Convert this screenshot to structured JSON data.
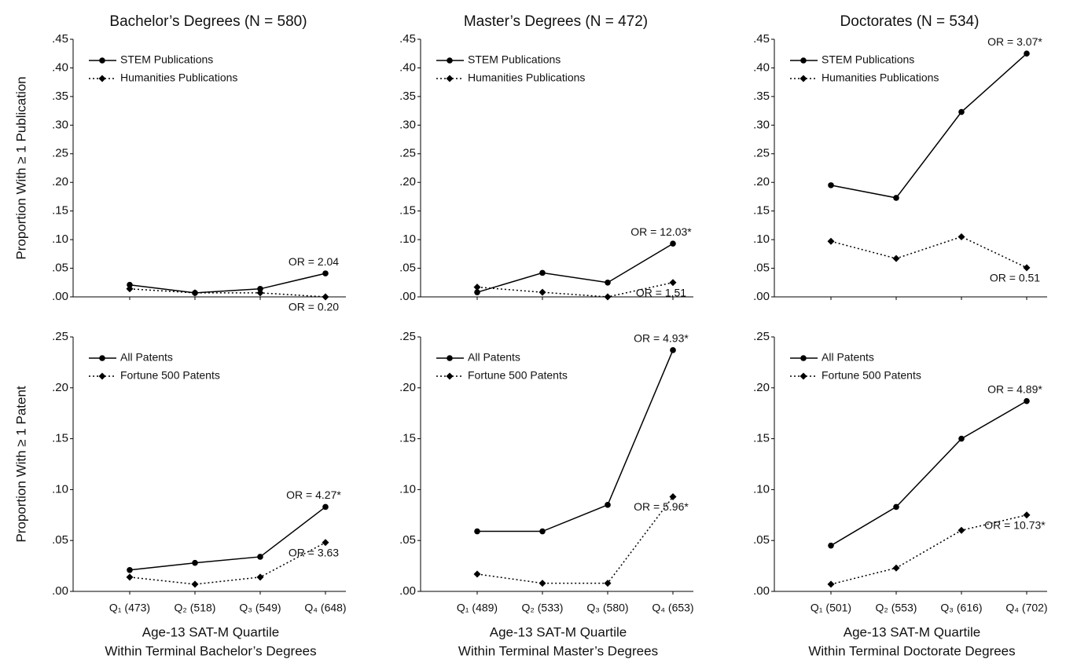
{
  "chart_data": [
    {
      "type": "line",
      "title": "Bachelor’s Degrees (N = 580)",
      "ylabel": "Proportion With ≥ 1 Publication",
      "categories": [
        null,
        null,
        null,
        null
      ],
      "ylim": [
        0,
        0.45
      ],
      "yticks": [
        {
          "value": 0,
          "label": ".00"
        },
        {
          "value": 0.05,
          "label": ".05"
        },
        {
          "value": 0.1,
          "label": ".10"
        },
        {
          "value": 0.15,
          "label": ".15"
        },
        {
          "value": 0.2,
          "label": ".20"
        },
        {
          "value": 0.25,
          "label": ".25"
        },
        {
          "value": 0.3,
          "label": ".30"
        },
        {
          "value": 0.35,
          "label": ".35"
        },
        {
          "value": 0.4,
          "label": ".40"
        },
        {
          "value": 0.45,
          "label": ".45"
        }
      ],
      "series": [
        {
          "name": "STEM Publications",
          "color": "#000000",
          "style": "solid",
          "marker": "circle",
          "values": [
            0.021,
            0.007,
            0.014,
            0.041
          ],
          "annotation": "OR = 2.04"
        },
        {
          "name": "Humanities Publications",
          "color": "#000000",
          "style": "dotted",
          "marker": "diamond",
          "values": [
            0.014,
            0.007,
            0.007,
            0.0
          ],
          "annotation": "OR = 0.20"
        }
      ]
    },
    {
      "type": "line",
      "title": "Master’s Degrees (N = 472)",
      "categories": [
        null,
        null,
        null,
        null
      ],
      "ylim": [
        0,
        0.45
      ],
      "yticks": [
        {
          "value": 0,
          "label": ".00"
        },
        {
          "value": 0.05,
          "label": ".05"
        },
        {
          "value": 0.1,
          "label": ".10"
        },
        {
          "value": 0.15,
          "label": ".15"
        },
        {
          "value": 0.2,
          "label": ".20"
        },
        {
          "value": 0.25,
          "label": ".25"
        },
        {
          "value": 0.3,
          "label": ".30"
        },
        {
          "value": 0.35,
          "label": ".35"
        },
        {
          "value": 0.4,
          "label": ".40"
        },
        {
          "value": 0.45,
          "label": ".45"
        }
      ],
      "series": [
        {
          "name": "STEM Publications",
          "color": "#000000",
          "style": "solid",
          "marker": "circle",
          "values": [
            0.008,
            0.042,
            0.025,
            0.093
          ],
          "annotation": "OR = 12.03*"
        },
        {
          "name": "Humanities Publications",
          "color": "#000000",
          "style": "dotted",
          "marker": "diamond",
          "values": [
            0.017,
            0.008,
            0.0,
            0.025
          ],
          "annotation": "OR = 1.51"
        }
      ]
    },
    {
      "type": "line",
      "title": "Doctorates (N = 534)",
      "categories": [
        null,
        null,
        null,
        null
      ],
      "ylim": [
        0,
        0.45
      ],
      "yticks": [
        {
          "value": 0,
          "label": ".00"
        },
        {
          "value": 0.05,
          "label": ".05"
        },
        {
          "value": 0.1,
          "label": ".10"
        },
        {
          "value": 0.15,
          "label": ".15"
        },
        {
          "value": 0.2,
          "label": ".20"
        },
        {
          "value": 0.25,
          "label": ".25"
        },
        {
          "value": 0.3,
          "label": ".30"
        },
        {
          "value": 0.35,
          "label": ".35"
        },
        {
          "value": 0.4,
          "label": ".40"
        },
        {
          "value": 0.45,
          "label": ".45"
        }
      ],
      "series": [
        {
          "name": "STEM Publications",
          "color": "#000000",
          "style": "solid",
          "marker": "circle",
          "values": [
            0.195,
            0.173,
            0.323,
            0.425
          ],
          "annotation": "OR = 3.07*"
        },
        {
          "name": "Humanities Publications",
          "color": "#000000",
          "style": "dotted",
          "marker": "diamond",
          "values": [
            0.097,
            0.067,
            0.105,
            0.051
          ],
          "annotation": "OR = 0.51"
        }
      ]
    },
    {
      "type": "line",
      "ylabel": "Proportion With ≥ 1 Patent",
      "xlabel": [
        "Age-13 SAT-M Quartile",
        "Within Terminal Bachelor’s Degrees"
      ],
      "categories": [
        "Q₁ (473)",
        "Q₂ (518)",
        "Q₃ (549)",
        "Q₄ (648)"
      ],
      "ylim": [
        0,
        0.25
      ],
      "yticks": [
        {
          "value": 0,
          "label": ".00"
        },
        {
          "value": 0.05,
          "label": ".05"
        },
        {
          "value": 0.1,
          "label": ".10"
        },
        {
          "value": 0.15,
          "label": ".15"
        },
        {
          "value": 0.2,
          "label": ".20"
        },
        {
          "value": 0.25,
          "label": ".25"
        }
      ],
      "series": [
        {
          "name": "All Patents",
          "color": "#000000",
          "style": "solid",
          "marker": "circle",
          "values": [
            0.021,
            0.028,
            0.034,
            0.083
          ],
          "annotation": "OR = 4.27*"
        },
        {
          "name": "Fortune 500 Patents",
          "color": "#000000",
          "style": "dotted",
          "marker": "diamond",
          "values": [
            0.014,
            0.007,
            0.014,
            0.048
          ],
          "annotation": "OR = 3.63"
        }
      ]
    },
    {
      "type": "line",
      "xlabel": [
        "Age-13 SAT-M Quartile",
        "Within Terminal Master’s Degrees"
      ],
      "categories": [
        "Q₁ (489)",
        "Q₂ (533)",
        "Q₃ (580)",
        "Q₄ (653)"
      ],
      "ylim": [
        0,
        0.25
      ],
      "yticks": [
        {
          "value": 0,
          "label": ".00"
        },
        {
          "value": 0.05,
          "label": ".05"
        },
        {
          "value": 0.1,
          "label": ".10"
        },
        {
          "value": 0.15,
          "label": ".15"
        },
        {
          "value": 0.2,
          "label": ".20"
        },
        {
          "value": 0.25,
          "label": ".25"
        }
      ],
      "series": [
        {
          "name": "All Patents",
          "color": "#000000",
          "style": "solid",
          "marker": "circle",
          "values": [
            0.059,
            0.059,
            0.085,
            0.237
          ],
          "annotation": "OR = 4.93*"
        },
        {
          "name": "Fortune 500 Patents",
          "color": "#000000",
          "style": "dotted",
          "marker": "diamond",
          "values": [
            0.017,
            0.008,
            0.008,
            0.093
          ],
          "annotation": "OR = 5.96*"
        }
      ]
    },
    {
      "type": "line",
      "xlabel": [
        "Age-13 SAT-M Quartile",
        "Within Terminal Doctorate Degrees"
      ],
      "categories": [
        "Q₁ (501)",
        "Q₂ (553)",
        "Q₃ (616)",
        "Q₄ (702)"
      ],
      "ylim": [
        0,
        0.25
      ],
      "yticks": [
        {
          "value": 0,
          "label": ".00"
        },
        {
          "value": 0.05,
          "label": ".05"
        },
        {
          "value": 0.1,
          "label": ".10"
        },
        {
          "value": 0.15,
          "label": ".15"
        },
        {
          "value": 0.2,
          "label": ".20"
        },
        {
          "value": 0.25,
          "label": ".25"
        }
      ],
      "series": [
        {
          "name": "All Patents",
          "color": "#000000",
          "style": "solid",
          "marker": "circle",
          "values": [
            0.045,
            0.083,
            0.15,
            0.187
          ],
          "annotation": "OR = 4.89*"
        },
        {
          "name": "Fortune 500 Patents",
          "color": "#000000",
          "style": "dotted",
          "marker": "diamond",
          "values": [
            0.007,
            0.023,
            0.06,
            0.075
          ],
          "annotation": "OR = 10.73*"
        }
      ]
    }
  ]
}
